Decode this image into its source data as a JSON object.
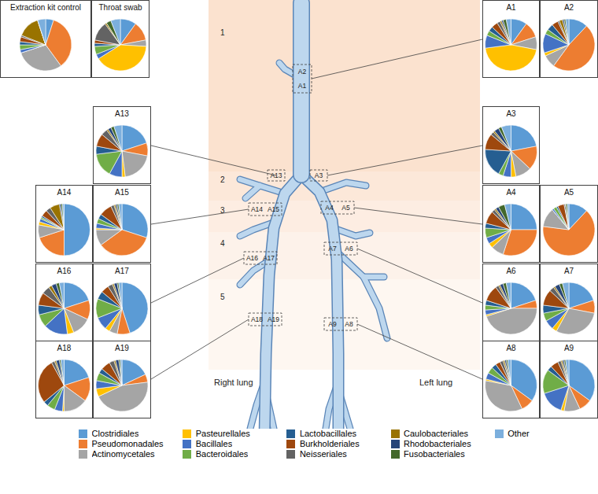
{
  "chart_data": [
    {
      "type": "pie",
      "title": "Extraction kit control",
      "categories": [
        "Clostridiales",
        "Pseudomonadales",
        "Actinomycetales",
        "Pasteurellales",
        "Bacillales",
        "Bacteroidales",
        "Lactobacillales",
        "Burkholderiales",
        "Neisseriales",
        "Caulobacteriales",
        "Rhodobacteriales",
        "Fusobacteriales",
        "Other"
      ],
      "colors": [
        "#5b9bd5",
        "#ed7d31",
        "#a5a5a5",
        "#ffc000",
        "#4472c4",
        "#70ad47",
        "#255e91",
        "#9e480e",
        "#636363",
        "#997300",
        "#264478",
        "#43682b",
        "#7cafdd"
      ],
      "values": [
        5,
        35,
        30,
        0,
        2,
        3,
        2,
        3,
        1,
        14,
        0,
        0,
        5
      ]
    },
    {
      "type": "pie",
      "title": "Throat swab",
      "categories": [
        "Clostridiales",
        "Pseudomonadales",
        "Actinomycetales",
        "Pasteurellales",
        "Bacillales",
        "Bacteroidales",
        "Lactobacillales",
        "Burkholderiales",
        "Neisseriales",
        "Caulobacteriales",
        "Rhodobacteriales",
        "Fusobacteriales",
        "Other"
      ],
      "colors": [
        "#5b9bd5",
        "#ed7d31",
        "#a5a5a5",
        "#ffc000",
        "#4472c4",
        "#70ad47",
        "#255e91",
        "#9e480e",
        "#636363",
        "#997300",
        "#264478",
        "#43682b",
        "#7cafdd"
      ],
      "values": [
        10,
        12,
        4,
        40,
        3,
        5,
        2,
        2,
        12,
        1,
        0,
        3,
        6
      ]
    },
    {
      "type": "pie",
      "title": "A1",
      "categories": [
        "Clostridiales",
        "Pseudomonadales",
        "Actinomycetales",
        "Pasteurellales",
        "Bacillales",
        "Bacteroidales",
        "Lactobacillales",
        "Burkholderiales",
        "Neisseriales",
        "Caulobacteriales",
        "Rhodobacteriales",
        "Fusobacteriales",
        "Other"
      ],
      "colors": [
        "#5b9bd5",
        "#ed7d31",
        "#a5a5a5",
        "#ffc000",
        "#4472c4",
        "#70ad47",
        "#255e91",
        "#9e480e",
        "#636363",
        "#997300",
        "#264478",
        "#43682b",
        "#7cafdd"
      ],
      "values": [
        10,
        10,
        8,
        45,
        8,
        3,
        3,
        4,
        2,
        1,
        1,
        2,
        3
      ]
    },
    {
      "type": "pie",
      "title": "A2",
      "categories": [
        "Clostridiales",
        "Pseudomonadales",
        "Actinomycetales",
        "Pasteurellales",
        "Bacillales",
        "Bacteroidales",
        "Lactobacillales",
        "Burkholderiales",
        "Neisseriales",
        "Caulobacteriales",
        "Rhodobacteriales",
        "Fusobacteriales",
        "Other"
      ],
      "colors": [
        "#5b9bd5",
        "#ed7d31",
        "#a5a5a5",
        "#ffc000",
        "#4472c4",
        "#70ad47",
        "#255e91",
        "#9e480e",
        "#636363",
        "#997300",
        "#264478",
        "#43682b",
        "#7cafdd"
      ],
      "values": [
        12,
        48,
        8,
        2,
        12,
        3,
        4,
        4,
        1,
        2,
        1,
        1,
        2
      ]
    },
    {
      "type": "pie",
      "title": "A3",
      "categories": [
        "Clostridiales",
        "Pseudomonadales",
        "Actinomycetales",
        "Pasteurellales",
        "Bacillales",
        "Bacteroidales",
        "Lactobacillales",
        "Burkholderiales",
        "Neisseriales",
        "Caulobacteriales",
        "Rhodobacteriales",
        "Fusobacteriales",
        "Other"
      ],
      "colors": [
        "#5b9bd5",
        "#ed7d31",
        "#a5a5a5",
        "#ffc000",
        "#4472c4",
        "#70ad47",
        "#255e91",
        "#9e480e",
        "#636363",
        "#997300",
        "#264478",
        "#43682b",
        "#7cafdd"
      ],
      "values": [
        22,
        15,
        10,
        3,
        5,
        3,
        18,
        10,
        2,
        1,
        3,
        2,
        6
      ]
    },
    {
      "type": "pie",
      "title": "A4",
      "categories": [
        "Clostridiales",
        "Pseudomonadales",
        "Actinomycetales",
        "Pasteurellales",
        "Bacillales",
        "Bacteroidales",
        "Lactobacillales",
        "Burkholderiales",
        "Neisseriales",
        "Caulobacteriales",
        "Rhodobacteriales",
        "Fusobacteriales",
        "Other"
      ],
      "colors": [
        "#5b9bd5",
        "#ed7d31",
        "#a5a5a5",
        "#ffc000",
        "#4472c4",
        "#70ad47",
        "#255e91",
        "#9e480e",
        "#636363",
        "#997300",
        "#264478",
        "#43682b",
        "#7cafdd"
      ],
      "values": [
        25,
        30,
        8,
        3,
        4,
        6,
        3,
        8,
        2,
        1,
        2,
        4,
        4
      ]
    },
    {
      "type": "pie",
      "title": "A5",
      "categories": [
        "Clostridiales",
        "Pseudomonadales",
        "Actinomycetales",
        "Pasteurellales",
        "Bacillales",
        "Bacteroidales",
        "Lactobacillales",
        "Burkholderiales",
        "Neisseriales",
        "Caulobacteriales",
        "Rhodobacteriales",
        "Fusobacteriales",
        "Other"
      ],
      "colors": [
        "#5b9bd5",
        "#ed7d31",
        "#a5a5a5",
        "#ffc000",
        "#4472c4",
        "#70ad47",
        "#255e91",
        "#9e480e",
        "#636363",
        "#997300",
        "#264478",
        "#43682b",
        "#7cafdd"
      ],
      "values": [
        12,
        65,
        12,
        0,
        1,
        2,
        1,
        4,
        1,
        0,
        0,
        1,
        1
      ]
    },
    {
      "type": "pie",
      "title": "A6",
      "categories": [
        "Clostridiales",
        "Pseudomonadales",
        "Actinomycetales",
        "Pasteurellales",
        "Bacillales",
        "Bacteroidales",
        "Lactobacillales",
        "Burkholderiales",
        "Neisseriales",
        "Caulobacteriales",
        "Rhodobacteriales",
        "Fusobacteriales",
        "Other"
      ],
      "colors": [
        "#5b9bd5",
        "#ed7d31",
        "#a5a5a5",
        "#ffc000",
        "#4472c4",
        "#70ad47",
        "#255e91",
        "#9e480e",
        "#636363",
        "#997300",
        "#264478",
        "#43682b",
        "#7cafdd"
      ],
      "values": [
        20,
        5,
        45,
        1,
        3,
        3,
        3,
        10,
        2,
        1,
        2,
        2,
        3
      ]
    },
    {
      "type": "pie",
      "title": "A7",
      "categories": [
        "Clostridiales",
        "Pseudomonadales",
        "Actinomycetales",
        "Pasteurellales",
        "Bacillales",
        "Bacteroidales",
        "Lactobacillales",
        "Burkholderiales",
        "Neisseriales",
        "Caulobacteriales",
        "Rhodobacteriales",
        "Fusobacteriales",
        "Other"
      ],
      "colors": [
        "#5b9bd5",
        "#ed7d31",
        "#a5a5a5",
        "#ffc000",
        "#4472c4",
        "#70ad47",
        "#255e91",
        "#9e480e",
        "#636363",
        "#997300",
        "#264478",
        "#43682b",
        "#7cafdd"
      ],
      "values": [
        20,
        8,
        30,
        3,
        6,
        5,
        5,
        10,
        3,
        1,
        3,
        2,
        4
      ]
    },
    {
      "type": "pie",
      "title": "A8",
      "categories": [
        "Clostridiales",
        "Pseudomonadales",
        "Actinomycetales",
        "Pasteurellales",
        "Bacillales",
        "Bacteroidales",
        "Lactobacillales",
        "Burkholderiales",
        "Neisseriales",
        "Caulobacteriales",
        "Rhodobacteriales",
        "Fusobacteriales",
        "Other"
      ],
      "colors": [
        "#5b9bd5",
        "#ed7d31",
        "#a5a5a5",
        "#ffc000",
        "#4472c4",
        "#70ad47",
        "#255e91",
        "#9e480e",
        "#636363",
        "#997300",
        "#264478",
        "#43682b",
        "#7cafdd"
      ],
      "values": [
        35,
        8,
        35,
        1,
        4,
        4,
        3,
        3,
        2,
        1,
        1,
        1,
        2
      ]
    },
    {
      "type": "pie",
      "title": "A9",
      "categories": [
        "Clostridiales",
        "Pseudomonadales",
        "Actinomycetales",
        "Pasteurellales",
        "Bacillales",
        "Bacteroidales",
        "Lactobacillales",
        "Burkholderiales",
        "Neisseriales",
        "Caulobacteriales",
        "Rhodobacteriales",
        "Fusobacteriales",
        "Other"
      ],
      "colors": [
        "#5b9bd5",
        "#ed7d31",
        "#a5a5a5",
        "#ffc000",
        "#4472c4",
        "#70ad47",
        "#255e91",
        "#9e480e",
        "#636363",
        "#997300",
        "#264478",
        "#43682b",
        "#7cafdd"
      ],
      "values": [
        35,
        8,
        10,
        2,
        15,
        15,
        3,
        5,
        2,
        1,
        1,
        1,
        2
      ]
    },
    {
      "type": "pie",
      "title": "A13",
      "categories": [
        "Clostridiales",
        "Pseudomonadales",
        "Actinomycetales",
        "Pasteurellales",
        "Bacillales",
        "Bacteroidales",
        "Lactobacillales",
        "Burkholderiales",
        "Neisseriales",
        "Caulobacteriales",
        "Rhodobacteriales",
        "Fusobacteriales",
        "Other"
      ],
      "colors": [
        "#5b9bd5",
        "#ed7d31",
        "#a5a5a5",
        "#ffc000",
        "#4472c4",
        "#70ad47",
        "#255e91",
        "#9e480e",
        "#636363",
        "#997300",
        "#264478",
        "#43682b",
        "#7cafdd"
      ],
      "values": [
        20,
        8,
        20,
        2,
        8,
        15,
        5,
        8,
        4,
        1,
        2,
        2,
        5
      ]
    },
    {
      "type": "pie",
      "title": "A14",
      "categories": [
        "Clostridiales",
        "Pseudomonadales",
        "Actinomycetales",
        "Pasteurellales",
        "Bacillales",
        "Bacteroidales",
        "Lactobacillales",
        "Burkholderiales",
        "Neisseriales",
        "Caulobacteriales",
        "Rhodobacteriales",
        "Fusobacteriales",
        "Other"
      ],
      "colors": [
        "#5b9bd5",
        "#ed7d31",
        "#a5a5a5",
        "#ffc000",
        "#4472c4",
        "#70ad47",
        "#255e91",
        "#9e480e",
        "#636363",
        "#997300",
        "#264478",
        "#43682b",
        "#7cafdd"
      ],
      "values": [
        50,
        20,
        8,
        2,
        2,
        1,
        1,
        4,
        3,
        6,
        1,
        1,
        1
      ]
    },
    {
      "type": "pie",
      "title": "A15",
      "categories": [
        "Clostridiales",
        "Pseudomonadales",
        "Actinomycetales",
        "Pasteurellales",
        "Bacillales",
        "Bacteroidales",
        "Lactobacillales",
        "Burkholderiales",
        "Neisseriales",
        "Caulobacteriales",
        "Rhodobacteriales",
        "Fusobacteriales",
        "Other"
      ],
      "colors": [
        "#5b9bd5",
        "#ed7d31",
        "#a5a5a5",
        "#ffc000",
        "#4472c4",
        "#70ad47",
        "#255e91",
        "#9e480e",
        "#636363",
        "#997300",
        "#264478",
        "#43682b",
        "#7cafdd"
      ],
      "values": [
        30,
        35,
        10,
        1,
        3,
        3,
        3,
        8,
        2,
        1,
        1,
        1,
        2
      ]
    },
    {
      "type": "pie",
      "title": "A16",
      "categories": [
        "Clostridiales",
        "Pseudomonadales",
        "Actinomycetales",
        "Pasteurellales",
        "Bacillales",
        "Bacteroidales",
        "Lactobacillales",
        "Burkholderiales",
        "Neisseriales",
        "Caulobacteriales",
        "Rhodobacteriales",
        "Fusobacteriales",
        "Other"
      ],
      "colors": [
        "#5b9bd5",
        "#ed7d31",
        "#a5a5a5",
        "#ffc000",
        "#4472c4",
        "#70ad47",
        "#255e91",
        "#9e480e",
        "#636363",
        "#997300",
        "#264478",
        "#43682b",
        "#7cafdd"
      ],
      "values": [
        20,
        12,
        12,
        4,
        15,
        8,
        6,
        8,
        5,
        2,
        3,
        2,
        3
      ]
    },
    {
      "type": "pie",
      "title": "A17",
      "categories": [
        "Clostridiales",
        "Pseudomonadales",
        "Actinomycetales",
        "Pasteurellales",
        "Bacillales",
        "Bacteroidales",
        "Lactobacillales",
        "Burkholderiales",
        "Neisseriales",
        "Caulobacteriales",
        "Rhodobacteriales",
        "Fusobacteriales",
        "Other"
      ],
      "colors": [
        "#5b9bd5",
        "#ed7d31",
        "#a5a5a5",
        "#ffc000",
        "#4472c4",
        "#70ad47",
        "#255e91",
        "#9e480e",
        "#636363",
        "#997300",
        "#264478",
        "#43682b",
        "#7cafdd"
      ],
      "values": [
        45,
        8,
        5,
        3,
        8,
        12,
        5,
        5,
        3,
        1,
        2,
        1,
        2
      ]
    },
    {
      "type": "pie",
      "title": "A18",
      "categories": [
        "Clostridiales",
        "Pseudomonadales",
        "Actinomycetales",
        "Pasteurellales",
        "Bacillales",
        "Bacteroidales",
        "Lactobacillales",
        "Burkholderiales",
        "Neisseriales",
        "Caulobacteriales",
        "Rhodobacteriales",
        "Fusobacteriales",
        "Other"
      ],
      "colors": [
        "#5b9bd5",
        "#ed7d31",
        "#a5a5a5",
        "#ffc000",
        "#4472c4",
        "#70ad47",
        "#255e91",
        "#9e480e",
        "#636363",
        "#997300",
        "#264478",
        "#43682b",
        "#7cafdd"
      ],
      "values": [
        20,
        15,
        15,
        1,
        5,
        5,
        3,
        28,
        2,
        1,
        2,
        1,
        2
      ]
    },
    {
      "type": "pie",
      "title": "A19",
      "categories": [
        "Clostridiales",
        "Pseudomonadales",
        "Actinomycetales",
        "Pasteurellales",
        "Bacillales",
        "Bacteroidales",
        "Lactobacillales",
        "Burkholderiales",
        "Neisseriales",
        "Caulobacteriales",
        "Rhodobacteriales",
        "Fusobacteriales",
        "Other"
      ],
      "colors": [
        "#5b9bd5",
        "#ed7d31",
        "#a5a5a5",
        "#ffc000",
        "#4472c4",
        "#70ad47",
        "#255e91",
        "#9e480e",
        "#636363",
        "#997300",
        "#264478",
        "#43682b",
        "#7cafdd"
      ],
      "values": [
        18,
        5,
        45,
        5,
        5,
        5,
        3,
        6,
        3,
        1,
        2,
        1,
        1
      ]
    }
  ],
  "diagram": {
    "zones": [
      "1",
      "2",
      "3",
      "4",
      "5"
    ],
    "site_groups": [
      [
        "A2",
        "A1"
      ],
      [
        "A13"
      ],
      [
        "A3"
      ],
      [
        "A14",
        "A15"
      ],
      [
        "A4",
        "A5"
      ],
      [
        "A16",
        "A17"
      ],
      [
        "A7",
        "A6"
      ],
      [
        "A18",
        "A19"
      ],
      [
        "A9",
        "A8"
      ]
    ],
    "lung_labels": [
      "Right lung",
      "Left lung"
    ]
  }
}
